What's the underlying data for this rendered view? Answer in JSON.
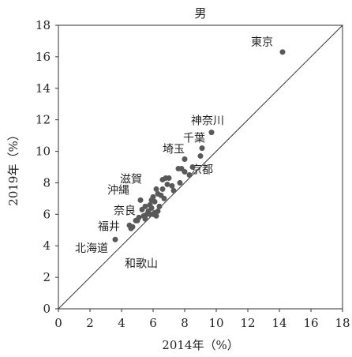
{
  "chart_data": {
    "type": "scatter",
    "title": "男",
    "xlabel": "2014年（%）",
    "ylabel": "2019年（%）",
    "xlim": [
      0,
      18
    ],
    "ylim": [
      0,
      18
    ],
    "xticks": [
      0,
      2,
      4,
      6,
      8,
      10,
      12,
      14,
      16,
      18
    ],
    "yticks": [
      0,
      2,
      4,
      6,
      8,
      10,
      12,
      14,
      16,
      18
    ],
    "grid": false,
    "legend": "none",
    "reference_line": "y = x",
    "marker_color": "#595959",
    "points": [
      {
        "x": 14.2,
        "y": 16.3,
        "label": "東京"
      },
      {
        "x": 9.7,
        "y": 11.2,
        "label": "神奈川"
      },
      {
        "x": 9.1,
        "y": 10.2,
        "label": "千葉"
      },
      {
        "x": 8.0,
        "y": 9.5,
        "label": "埼玉"
      },
      {
        "x": 9.0,
        "y": 9.7,
        "label": "京都"
      },
      {
        "x": 6.6,
        "y": 8.2,
        "label": "滋賀"
      },
      {
        "x": 5.2,
        "y": 6.9,
        "label": "沖縄"
      },
      {
        "x": 4.9,
        "y": 5.6,
        "label": "奈良"
      },
      {
        "x": 4.6,
        "y": 5.1,
        "label": "福井"
      },
      {
        "x": 3.6,
        "y": 4.4,
        "label": "北海道"
      },
      {
        "x": 5.4,
        "y": 5.9,
        "label": "和歌山"
      },
      {
        "x": 7.0,
        "y": 8.3,
        "label": ""
      },
      {
        "x": 6.8,
        "y": 8.3,
        "label": ""
      },
      {
        "x": 7.2,
        "y": 7.8,
        "label": ""
      },
      {
        "x": 7.6,
        "y": 8.9,
        "label": ""
      },
      {
        "x": 7.8,
        "y": 8.9,
        "label": ""
      },
      {
        "x": 8.0,
        "y": 8.7,
        "label": ""
      },
      {
        "x": 8.5,
        "y": 9.0,
        "label": ""
      },
      {
        "x": 8.3,
        "y": 8.5,
        "label": ""
      },
      {
        "x": 7.7,
        "y": 8.0,
        "label": ""
      },
      {
        "x": 6.9,
        "y": 7.9,
        "label": ""
      },
      {
        "x": 6.6,
        "y": 7.6,
        "label": ""
      },
      {
        "x": 6.2,
        "y": 7.6,
        "label": ""
      },
      {
        "x": 6.3,
        "y": 7.3,
        "label": ""
      },
      {
        "x": 6.0,
        "y": 7.1,
        "label": ""
      },
      {
        "x": 6.5,
        "y": 7.2,
        "label": ""
      },
      {
        "x": 6.1,
        "y": 6.8,
        "label": ""
      },
      {
        "x": 5.8,
        "y": 6.6,
        "label": ""
      },
      {
        "x": 5.5,
        "y": 6.5,
        "label": ""
      },
      {
        "x": 5.9,
        "y": 6.4,
        "label": ""
      },
      {
        "x": 6.4,
        "y": 6.5,
        "label": ""
      },
      {
        "x": 5.3,
        "y": 6.3,
        "label": ""
      },
      {
        "x": 5.7,
        "y": 6.2,
        "label": ""
      },
      {
        "x": 6.1,
        "y": 6.1,
        "label": ""
      },
      {
        "x": 5.6,
        "y": 6.0,
        "label": ""
      },
      {
        "x": 6.0,
        "y": 6.0,
        "label": ""
      },
      {
        "x": 6.2,
        "y": 5.9,
        "label": ""
      },
      {
        "x": 5.5,
        "y": 5.7,
        "label": ""
      },
      {
        "x": 5.0,
        "y": 5.6,
        "label": ""
      },
      {
        "x": 4.5,
        "y": 5.3,
        "label": ""
      },
      {
        "x": 4.7,
        "y": 5.2,
        "label": ""
      },
      {
        "x": 5.1,
        "y": 5.8,
        "label": ""
      },
      {
        "x": 6.7,
        "y": 7.0,
        "label": ""
      },
      {
        "x": 5.8,
        "y": 6.0,
        "label": ""
      },
      {
        "x": 6.3,
        "y": 6.2,
        "label": ""
      },
      {
        "x": 7.3,
        "y": 7.5,
        "label": ""
      },
      {
        "x": 5.9,
        "y": 6.9,
        "label": ""
      }
    ]
  }
}
